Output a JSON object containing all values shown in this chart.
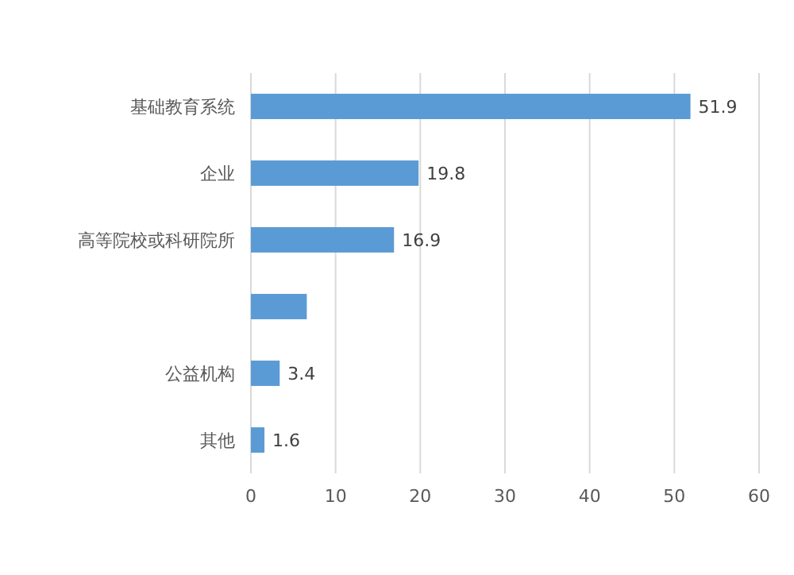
{
  "chart_data": {
    "type": "bar",
    "orientation": "horizontal",
    "categories": [
      "基础教育系统",
      "企业",
      "高等院校或科研院所",
      null,
      "公益机构",
      "其他"
    ],
    "values": [
      51.9,
      19.8,
      16.9,
      6.6,
      3.4,
      1.6
    ],
    "value_labels": [
      "51.9",
      "19.8",
      "16.9",
      null,
      "3.4",
      "1.6"
    ],
    "color": "#5b9bd5",
    "xlim": [
      0,
      60
    ],
    "xticks": [
      0,
      10,
      20,
      30,
      40,
      50,
      60
    ],
    "grid": "x"
  }
}
